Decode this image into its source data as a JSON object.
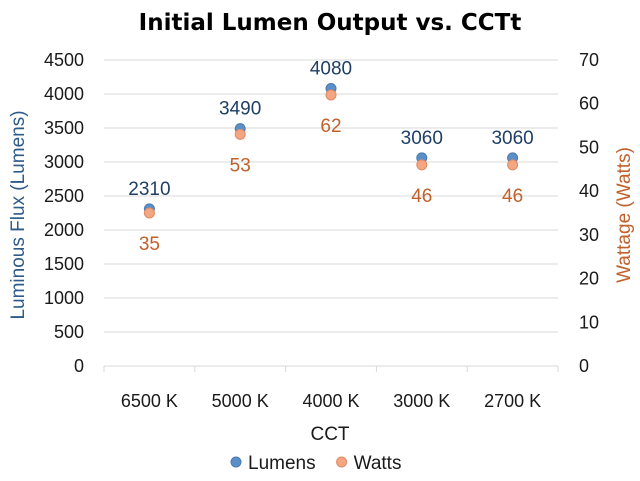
{
  "chart_data": {
    "type": "scatter",
    "title": "Initial Lumen Output vs. CCTt",
    "xlabel": "CCT",
    "ylabel": "Luminous Flux (Lumens)",
    "y2label": "Wattage (Watts)",
    "categories": [
      "6500 K",
      "5000 K",
      "4000 K",
      "3000 K",
      "2700 K"
    ],
    "ylim": [
      0,
      4500
    ],
    "yticks": [
      0,
      500,
      1000,
      1500,
      2000,
      2500,
      3000,
      3500,
      4000,
      4500
    ],
    "y2lim": [
      0,
      70
    ],
    "y2ticks": [
      0,
      10,
      20,
      30,
      40,
      50,
      60,
      70
    ],
    "grid": true,
    "legend_position": "bottom",
    "series": [
      {
        "name": "Lumens",
        "axis": "left",
        "values": [
          2310,
          3490,
          4080,
          3060,
          3060
        ],
        "labels": [
          "2310",
          "3490",
          "4080",
          "3060",
          "3060"
        ],
        "color": "#5b8fc7",
        "label_color": "#1f3f66"
      },
      {
        "name": "Watts",
        "axis": "right",
        "values": [
          35,
          53,
          62,
          46,
          46
        ],
        "labels": [
          "35",
          "53",
          "62",
          "46",
          "46"
        ],
        "color": "#f4a582",
        "label_color": "#c0612b"
      }
    ],
    "colors": {
      "left_axis_title": "#2e5b8a",
      "right_axis_title": "#c0612b",
      "grid": "#d9d9d9"
    }
  }
}
